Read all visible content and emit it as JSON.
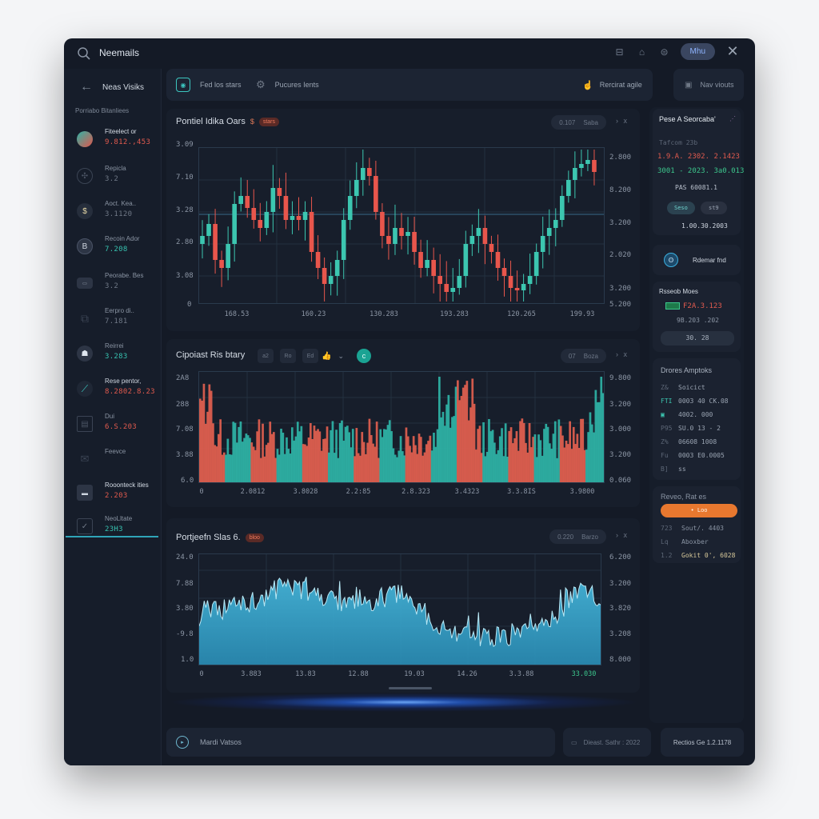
{
  "window": {
    "title": "Neemails",
    "topbar_icons": [
      "car-icon",
      "phone-icon",
      "robot-icon"
    ],
    "pill_button": "Mhu",
    "close": "✕"
  },
  "sidebar": {
    "back_label": "Neas Visiks",
    "section_title": "Porriabo Bitanliees",
    "items": [
      {
        "label": "Fiteelect or",
        "value": "9.812.,453",
        "value_color": "#e05a4e",
        "icon": "avatar-icon"
      },
      {
        "label": "Repicla",
        "value": "3.2",
        "value_color": "#7f8896",
        "icon": "brain-icon"
      },
      {
        "label": "Aoct. Kea..",
        "value": "3.1120",
        "value_color": "#7f8896",
        "icon": "dollar-coin-icon"
      },
      {
        "label": "Recoin Ador",
        "value": "7.208",
        "value_color": "#37c2b0",
        "icon": "currency-coin-icon"
      },
      {
        "label": "Peorabe. Bes",
        "value": "3.2",
        "value_color": "#7f8896",
        "icon": "card-icon"
      },
      {
        "label": "Eerpro di..",
        "value": "7.181",
        "value_color": "#7f8896",
        "icon": "puzzle-icon"
      },
      {
        "label": "Reirrei",
        "value": "3.283",
        "value_color": "#37c2b0",
        "icon": "robot-icon"
      },
      {
        "label": "Rese pentor,",
        "value": "8.2802.8.23",
        "value_color": "#e05a4e",
        "icon": "trend-line-icon"
      },
      {
        "label": "Dui",
        "value": "6.S.203",
        "value_color": "#e05a4e",
        "icon": "chart-box-icon"
      },
      {
        "label": "Feevce",
        "value": "",
        "value_color": "#7f8896",
        "icon": "envelope-chart-icon"
      },
      {
        "label": "Rooonteck ities",
        "value": "2.203",
        "value_color": "#e05a4e",
        "icon": "keyboard-icon"
      },
      {
        "label": "NeoLltate",
        "value": "23H3",
        "value_color": "#37c2b0",
        "icon": "check-chart-icon"
      }
    ]
  },
  "toolbar": {
    "btn1": "Fed los stars",
    "btn2": "Pucures Ients",
    "btn3": "Rercirat agile",
    "new_views": "Nav viouts"
  },
  "panels": [
    {
      "title": "Pontiel Idika Oars",
      "badge": "stars",
      "seg": [
        "0.107",
        "Saba"
      ],
      "nav": "› x",
      "y_left": [
        "3.09",
        "7.10",
        "3.28",
        "2.80",
        "3.08",
        "0"
      ],
      "y_right": [
        "2.800",
        "8.200",
        "3.200",
        "2.020",
        "3.200",
        "5.200"
      ],
      "x": [
        "168.53",
        "160.23",
        "130.283",
        "193.283",
        "120.265",
        "199.93"
      ]
    },
    {
      "title": "Cipoiast Ris btary",
      "mini_buttons": [
        "a2",
        "Ro",
        "Ed"
      ],
      "seg": [
        "07",
        "Boza"
      ],
      "nav": "› x",
      "y_left": [
        "2A8",
        "288",
        "7.08",
        "3.88",
        "6.0"
      ],
      "y_right": [
        "9.800",
        "3.200",
        "3.000",
        "3.200",
        "0.060"
      ],
      "x": [
        "0",
        "2.0812",
        "3.8028",
        "2.2:85",
        "2.8.323",
        "3.4323",
        "3.3.8IS",
        "3.9800"
      ]
    },
    {
      "title": "Portjeefn Slas 6.",
      "badge": "bloo",
      "seg": [
        "0.220",
        "Barzo"
      ],
      "nav": "› x",
      "y_left": [
        "24.0",
        "7.88",
        "3.80",
        "-9.8",
        "1.0"
      ],
      "y_right": [
        "6.200",
        "3.200",
        "3.820",
        "3.208",
        "8.000"
      ],
      "x": [
        "0",
        "3.883",
        "13.83",
        "12.88",
        "19.03",
        "14.26",
        "3.3.88",
        "33.030"
      ]
    }
  ],
  "right": {
    "card1": {
      "title": "Pese A Seorcaba'",
      "subtitle": "Tafcom 23b",
      "line_red": "1.9.A. 2302. 2.1423",
      "line_green": "3001 - 2023. 3a0.013",
      "caption": "PAS 60081.1",
      "btn_a": "Seso",
      "btn_b": "st9",
      "date": "1.00.30.2003"
    },
    "card2": {
      "label": "Rdemar fnd"
    },
    "card3": {
      "title": "Rsseob Moes",
      "value": "F2A.3.123",
      "sub": "9B.203 .202",
      "button": "30. 28"
    },
    "card4": {
      "title": "Drores Amptoks",
      "rows": [
        {
          "key": "Z&",
          "val": "Soicict"
        },
        {
          "key": "FTI",
          "val": "0003 40 CK.08"
        },
        {
          "key": "▣",
          "val": "4002. 000"
        },
        {
          "key": "P95",
          "val": "SU.0 13 - 2"
        },
        {
          "key": "Z%",
          "val": "06608 1008"
        },
        {
          "key": "Fu",
          "val": "0003 E0.0005"
        },
        {
          "key": "B]",
          "val": "ss"
        }
      ]
    },
    "card5": {
      "title": "Reveo, Rat es",
      "button": "• Loo",
      "rows": [
        {
          "key": "723",
          "val": "Sout/. 4403"
        },
        {
          "key": "Lq",
          "val": "Aboxber"
        },
        {
          "key": "1.2",
          "val": "Gokit 0', 6028"
        }
      ]
    }
  },
  "bottom": {
    "left": "Mardi Vatsos",
    "mid": "Dieast. Sathr : 2022",
    "right": "Rectios Ge 1.2.1178"
  },
  "colors": {
    "bg": "#141a26",
    "up": "#3cc6b0",
    "down": "#e8564c",
    "area": "#3aa6cc",
    "accent_orange": "#e8782f",
    "accent_teal": "#2fa4b8"
  }
}
